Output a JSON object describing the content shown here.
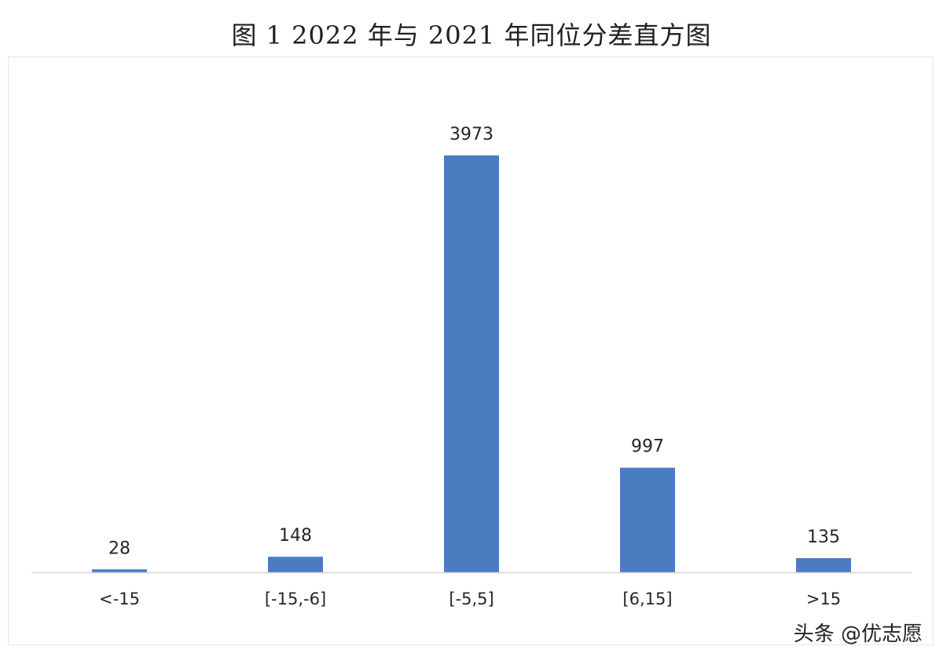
{
  "title": "图 1 2022 年与 2021 年同位分差直方图",
  "watermark": "头条 @优志愿",
  "colors": {
    "bar": "#4a7cc2",
    "axis": "#d0d3d8"
  },
  "chart_data": {
    "type": "bar",
    "title": "图 1 2022 年与 2021 年同位分差直方图",
    "categories": [
      "<-15",
      "[-15,-6]",
      "[-5,5]",
      "[6,15]",
      ">15"
    ],
    "values": [
      28,
      148,
      3973,
      997,
      135
    ],
    "xlabel": "",
    "ylabel": "",
    "grid": false,
    "legend": "none"
  }
}
